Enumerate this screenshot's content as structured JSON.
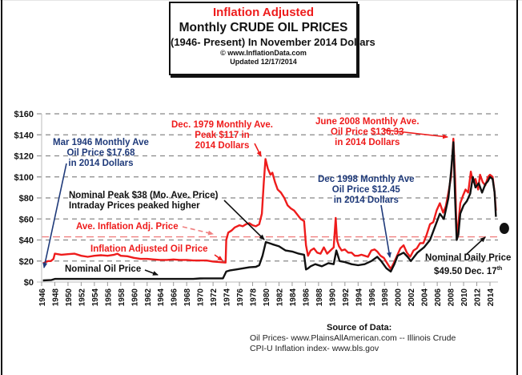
{
  "title": {
    "line1": "Inflation Adjusted",
    "line2": "Monthly CRUDE OIL PRICES",
    "line3": "(1946- Present) In November 2014 Dollars",
    "line4": "© www.InflationData.com",
    "line5": "Updated 12/17/2014"
  },
  "colors": {
    "adjusted": "#ee1c1c",
    "nominal": "#111111",
    "annotation_navy": "#1f3a7a",
    "average_line": "#f08080",
    "grid": "#888888"
  },
  "annotations": {
    "mar1946": [
      "Mar 1946 Monthly Ave",
      "Oil  Price $17.68",
      "in 2014 Dollars"
    ],
    "dec1979": [
      "Dec. 1979 Monthly Ave.",
      "Peak $117 in",
      "2014 Dollars"
    ],
    "june2008": [
      "June 2008 Monthly Ave.",
      "Oil  Price $136.33",
      "in 2014 Dollars"
    ],
    "dec1998": [
      "Dec 1998 Monthly Ave",
      "Oil  Price $12.45",
      "in 2014 Dollars"
    ],
    "nominal_peak": [
      "Nominal Peak $38 (Mo. Ave. Price)",
      "Intraday Prices peaked higher"
    ],
    "avg_label": "Ave. Inflation Adj. Price",
    "adjusted_label": "Inflation Adjusted Oil Price",
    "nominal_label": "Nominal Oil Price",
    "daily_label": "Nominal Daily Price",
    "daily_value": "$49.50 Dec. 17",
    "daily_sup": "th"
  },
  "source": {
    "heading": "Source of Data:",
    "line1": "Oil Prices- www.PlainsAllAmerican.com -- Illinois Crude",
    "line2": "CPI-U Inflation index-    www.bls.gov"
  },
  "chart_data": {
    "type": "line",
    "title": "Inflation Adjusted Monthly CRUDE OIL PRICES (1946- Present) In November 2014 Dollars",
    "xlabel": "",
    "ylabel": "",
    "xlim": [
      1946,
      2015
    ],
    "ylim": [
      0,
      160
    ],
    "y_ticks": [
      "$0",
      "$20",
      "$40",
      "$60",
      "$80",
      "$100",
      "$120",
      "$140",
      "$160"
    ],
    "y_tick_values": [
      0,
      20,
      40,
      60,
      80,
      100,
      120,
      140,
      160
    ],
    "x_ticks": [
      "1946",
      "1948",
      "1950",
      "1952",
      "1954",
      "1956",
      "1958",
      "1960",
      "1962",
      "1964",
      "1966",
      "1968",
      "1970",
      "1972",
      "1974",
      "1976",
      "1978",
      "1980",
      "1982",
      "1984",
      "1986",
      "1988",
      "1990",
      "1992",
      "1994",
      "1996",
      "1998",
      "2000",
      "2002",
      "2004",
      "2006",
      "2008",
      "2010",
      "2012",
      "2014"
    ],
    "grid": "horizontal dashed",
    "average_adjusted_price": 43,
    "nominal_daily_point": {
      "x": 2014.96,
      "y": 49.5
    },
    "series": [
      {
        "name": "Inflation Adjusted Oil Price",
        "x": [
          1946.2,
          1946.6,
          1947.0,
          1947.4,
          1947.8,
          1948.0,
          1949.0,
          1950.0,
          1951.0,
          1952.0,
          1953.0,
          1954.0,
          1955.0,
          1956.0,
          1957.0,
          1957.5,
          1958.0,
          1959.0,
          1960.0,
          1961.0,
          1962.0,
          1963.0,
          1964.0,
          1965.0,
          1966.0,
          1967.0,
          1968.0,
          1969.0,
          1970.0,
          1971.0,
          1972.0,
          1973.0,
          1973.9,
          1974.0,
          1974.3,
          1974.8,
          1975.3,
          1976.0,
          1976.5,
          1977.0,
          1977.5,
          1978.0,
          1978.5,
          1979.0,
          1979.4,
          1979.7,
          1979.95,
          1980.3,
          1980.7,
          1981.0,
          1981.4,
          1981.8,
          1982.3,
          1982.8,
          1983.3,
          1983.8,
          1984.3,
          1984.8,
          1985.3,
          1985.8,
          1986.1,
          1986.4,
          1986.8,
          1987.3,
          1987.8,
          1988.3,
          1988.8,
          1989.3,
          1989.8,
          1990.3,
          1990.6,
          1990.8,
          1991.1,
          1991.5,
          1992.0,
          1992.5,
          1993.0,
          1993.5,
          1994.0,
          1994.5,
          1995.0,
          1995.5,
          1996.0,
          1996.5,
          1996.9,
          1997.4,
          1997.9,
          1998.4,
          1998.95,
          1999.4,
          1999.9,
          2000.4,
          2000.9,
          2001.4,
          2001.9,
          2002.4,
          2002.9,
          2003.4,
          2003.9,
          2004.4,
          2004.9,
          2005.4,
          2005.9,
          2006.4,
          2006.9,
          2007.3,
          2007.7,
          2008.1,
          2008.45,
          2008.7,
          2008.95,
          2009.2,
          2009.5,
          2009.9,
          2010.3,
          2010.7,
          2011.1,
          2011.4,
          2011.8,
          2012.2,
          2012.5,
          2012.9,
          2013.3,
          2013.7,
          2014.0,
          2014.4,
          2014.7,
          2014.9
        ],
        "y": [
          17.68,
          19,
          20,
          20,
          22,
          27,
          26,
          26.5,
          27,
          25,
          24,
          25,
          25.5,
          25,
          26,
          27,
          25,
          24.5,
          23,
          22,
          22,
          21.5,
          21,
          21,
          21.5,
          21,
          21,
          20.5,
          20.5,
          20.5,
          19.5,
          19,
          18.5,
          40,
          47,
          49,
          52,
          54,
          53,
          55,
          56,
          54,
          53,
          55,
          65,
          95,
          117,
          108,
          102,
          104,
          95,
          88,
          85,
          80,
          73,
          70,
          68,
          64,
          60,
          58,
          35,
          25,
          30,
          32,
          28,
          27,
          33,
          27,
          30,
          33,
          61,
          40,
          34,
          30,
          31,
          28,
          28,
          25,
          25,
          26,
          25,
          24,
          30,
          31,
          29,
          25,
          23,
          18,
          12.45,
          18,
          25,
          32,
          35,
          28,
          24,
          30,
          32,
          37,
          37,
          45,
          55,
          57,
          68,
          75,
          66,
          72,
          85,
          100,
          136.33,
          100,
          45,
          55,
          75,
          82,
          88,
          85,
          105,
          95,
          98,
          88,
          102,
          95,
          92,
          100,
          102,
          100,
          85,
          68
        ]
      },
      {
        "name": "Nominal Oil Price",
        "x": [
          1946.2,
          1947.5,
          1948.0,
          1950.0,
          1953.0,
          1957.0,
          1960.0,
          1964.0,
          1969.0,
          1970.0,
          1973.5,
          1974.0,
          1974.5,
          1975.5,
          1976.5,
          1977.5,
          1978.5,
          1979.0,
          1979.5,
          1980.0,
          1980.5,
          1981.0,
          1981.5,
          1982.0,
          1983.0,
          1984.0,
          1985.0,
          1985.8,
          1986.1,
          1986.4,
          1986.8,
          1987.5,
          1988.5,
          1989.5,
          1990.3,
          1990.7,
          1991.2,
          1992.0,
          1993.0,
          1994.0,
          1995.0,
          1996.0,
          1996.9,
          1997.5,
          1998.3,
          1998.95,
          1999.5,
          2000.0,
          2000.9,
          2001.5,
          2002.0,
          2003.0,
          2004.0,
          2004.9,
          2005.5,
          2006.4,
          2007.0,
          2007.7,
          2008.1,
          2008.45,
          2008.7,
          2008.95,
          2009.2,
          2009.5,
          2010.0,
          2010.5,
          2011.0,
          2011.4,
          2011.8,
          2012.3,
          2012.8,
          2013.3,
          2013.7,
          2014.0,
          2014.4,
          2014.7,
          2014.9
        ],
        "y": [
          1.5,
          2,
          3,
          3,
          3,
          3,
          3,
          3,
          3,
          3.4,
          3.5,
          10,
          11,
          12,
          13,
          14,
          14.5,
          16,
          25,
          38,
          37,
          36,
          35,
          34,
          30,
          29,
          27,
          26,
          12,
          13,
          15,
          17,
          15,
          18,
          17,
          30,
          20,
          19,
          17,
          16,
          17,
          20,
          24,
          20,
          13,
          10,
          17,
          25,
          28,
          24,
          20,
          28,
          33,
          40,
          50,
          65,
          60,
          80,
          105,
          133,
          80,
          40,
          45,
          65,
          73,
          77,
          84,
          100,
          90,
          94,
          85,
          93,
          96,
          100,
          98,
          85,
          62
        ]
      }
    ]
  }
}
